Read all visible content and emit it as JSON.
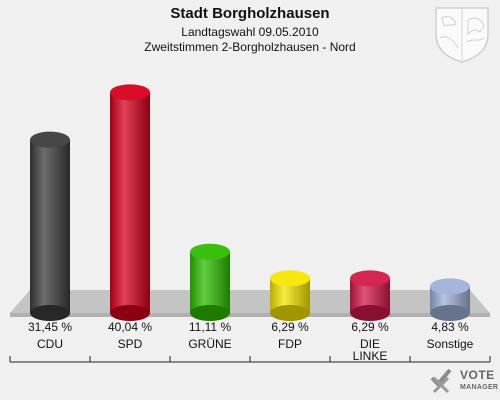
{
  "chart_data": {
    "type": "bar",
    "title": "Stadt Borgholzhausen",
    "subtitle": "Landtagswahl 09.05.2010",
    "subtitle2": "Zweitstimmen 2-Borgholzhausen - Nord",
    "categories": [
      "CDU",
      "SPD",
      "GRÜNE",
      "FDP",
      "DIE LINKE",
      "Sonstige"
    ],
    "values": [
      31.45,
      40.04,
      11.11,
      6.29,
      6.29,
      4.83
    ],
    "value_labels": [
      "31,45 %",
      "40,04 %",
      "11,11 %",
      "6,29 %",
      "6,29 %",
      "4,83 %"
    ],
    "colors": [
      "#3d3d3d",
      "#d8001e",
      "#2ebd00",
      "#f5e600",
      "#d5194a",
      "#9fb0d8"
    ],
    "ylim": [
      0,
      45
    ],
    "grid": false,
    "legend": "none"
  },
  "logo": {
    "line1": "VOTE",
    "line2": "MANAGER"
  }
}
